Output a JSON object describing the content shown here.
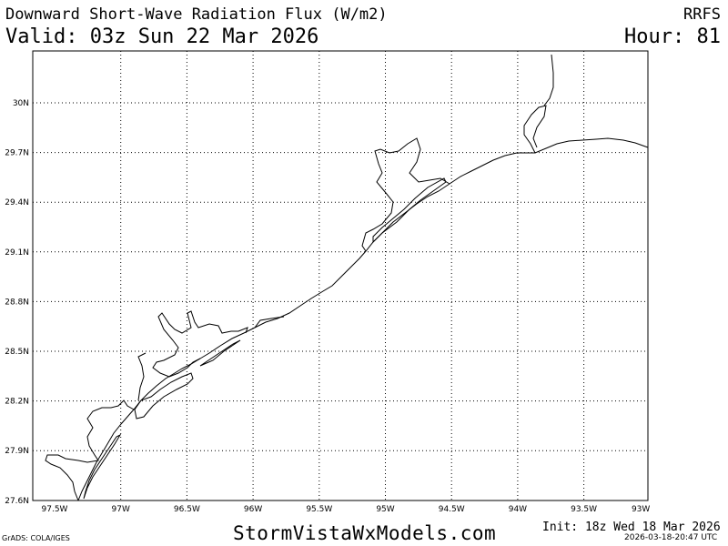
{
  "header": {
    "title": "Downward Short-Wave Radiation Flux (W/m2)",
    "model": "RRFS",
    "valid": "Valid: 03z Sun 22 Mar 2026",
    "hour": "Hour: 81"
  },
  "footer": {
    "website": "StormVistaWxModels.com",
    "init": "Init: 18z Wed 18 Mar 2026",
    "grads_credit": "GrADS: COLA/IGES",
    "timestamp": "2026-03-18-20:47 UTC"
  },
  "map": {
    "x_ticks": [
      "97.5W",
      "97W",
      "96.5W",
      "96W",
      "95.5W",
      "95W",
      "94.5W",
      "94W",
      "93.5W",
      "93W"
    ],
    "y_ticks": [
      "30N",
      "29.7N",
      "29.4N",
      "29.1N",
      "28.8N",
      "28.5N",
      "28.2N",
      "27.9N",
      "27.6N"
    ],
    "grid": "dotted",
    "line_color": "#000000"
  }
}
